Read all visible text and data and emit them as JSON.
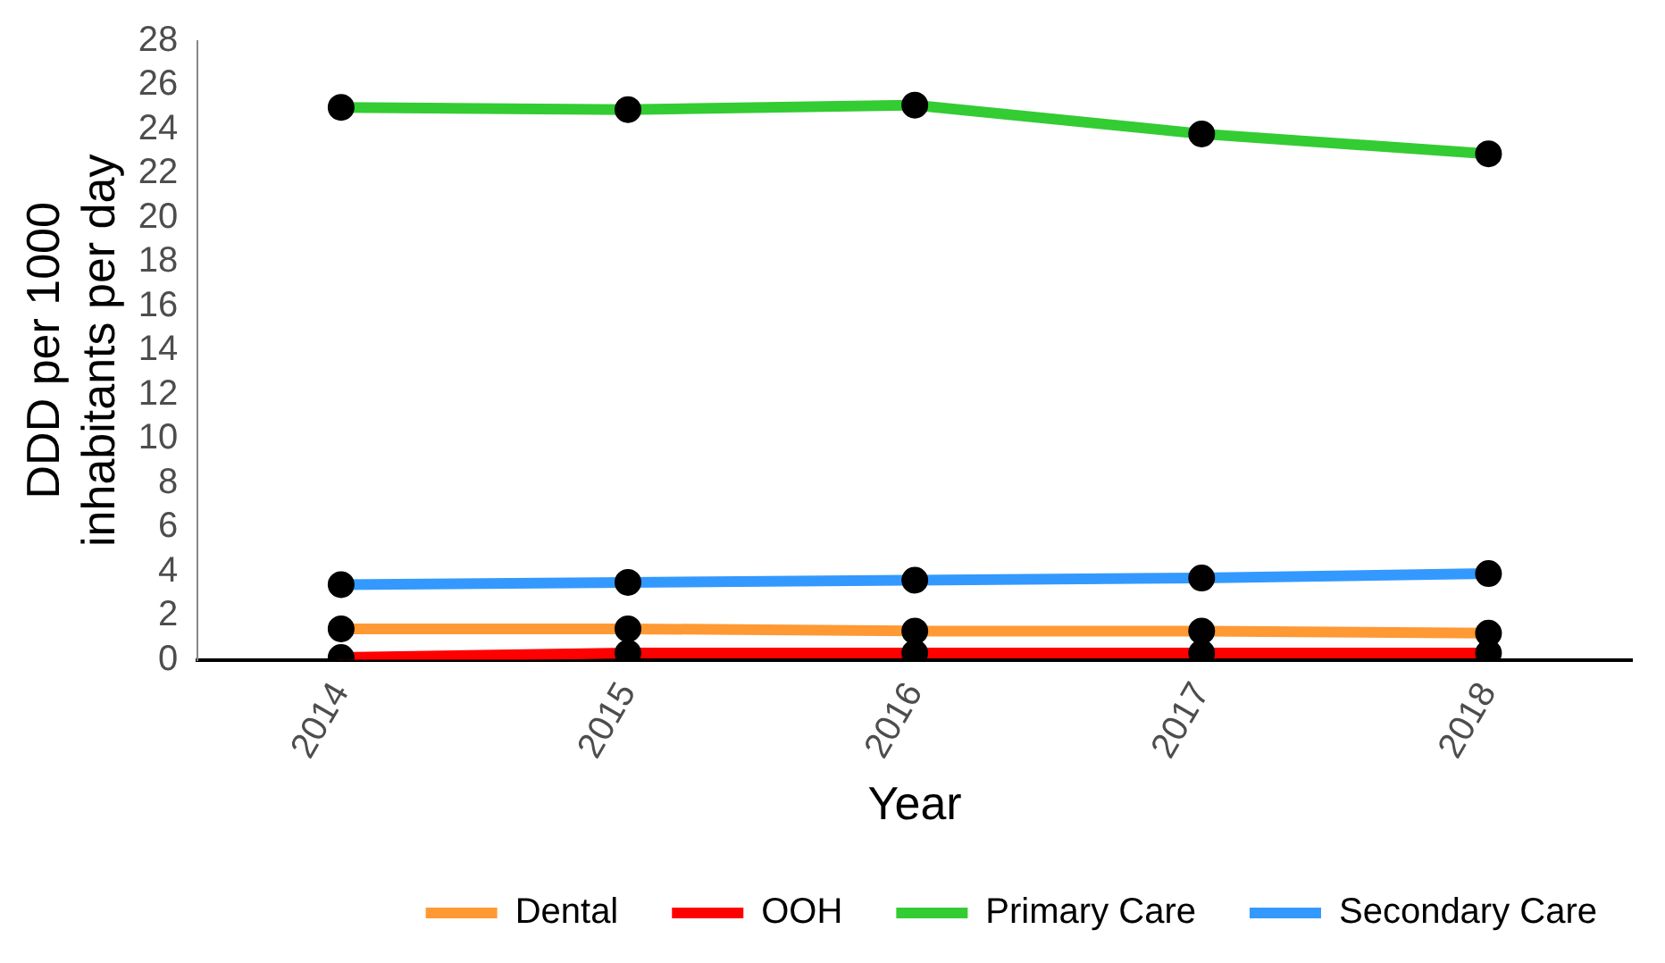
{
  "chart_data": {
    "type": "line",
    "xlabel": "Year",
    "ylabel": "DDD per 1000 inhabitants per day",
    "categories": [
      "2014",
      "2015",
      "2016",
      "2017",
      "2018"
    ],
    "series": [
      {
        "name": "Dental",
        "color": "#ff9933",
        "values": [
          1.4,
          1.4,
          1.3,
          1.3,
          1.2
        ]
      },
      {
        "name": "OOH",
        "color": "#ff0000",
        "values": [
          0.1,
          0.3,
          0.3,
          0.3,
          0.3
        ]
      },
      {
        "name": "Primary Care",
        "color": "#33cc33",
        "values": [
          25.0,
          24.9,
          25.1,
          23.8,
          22.9
        ]
      },
      {
        "name": "Secondary Care",
        "color": "#3399ff",
        "values": [
          3.4,
          3.5,
          3.6,
          3.7,
          3.9
        ]
      }
    ],
    "ylim": [
      0,
      28
    ],
    "yticks": [
      0,
      2,
      4,
      6,
      8,
      10,
      12,
      14,
      16,
      18,
      20,
      22,
      24,
      26,
      28
    ],
    "grid": false,
    "legend": "bottom",
    "marker": "circle",
    "line_style": "solid"
  }
}
